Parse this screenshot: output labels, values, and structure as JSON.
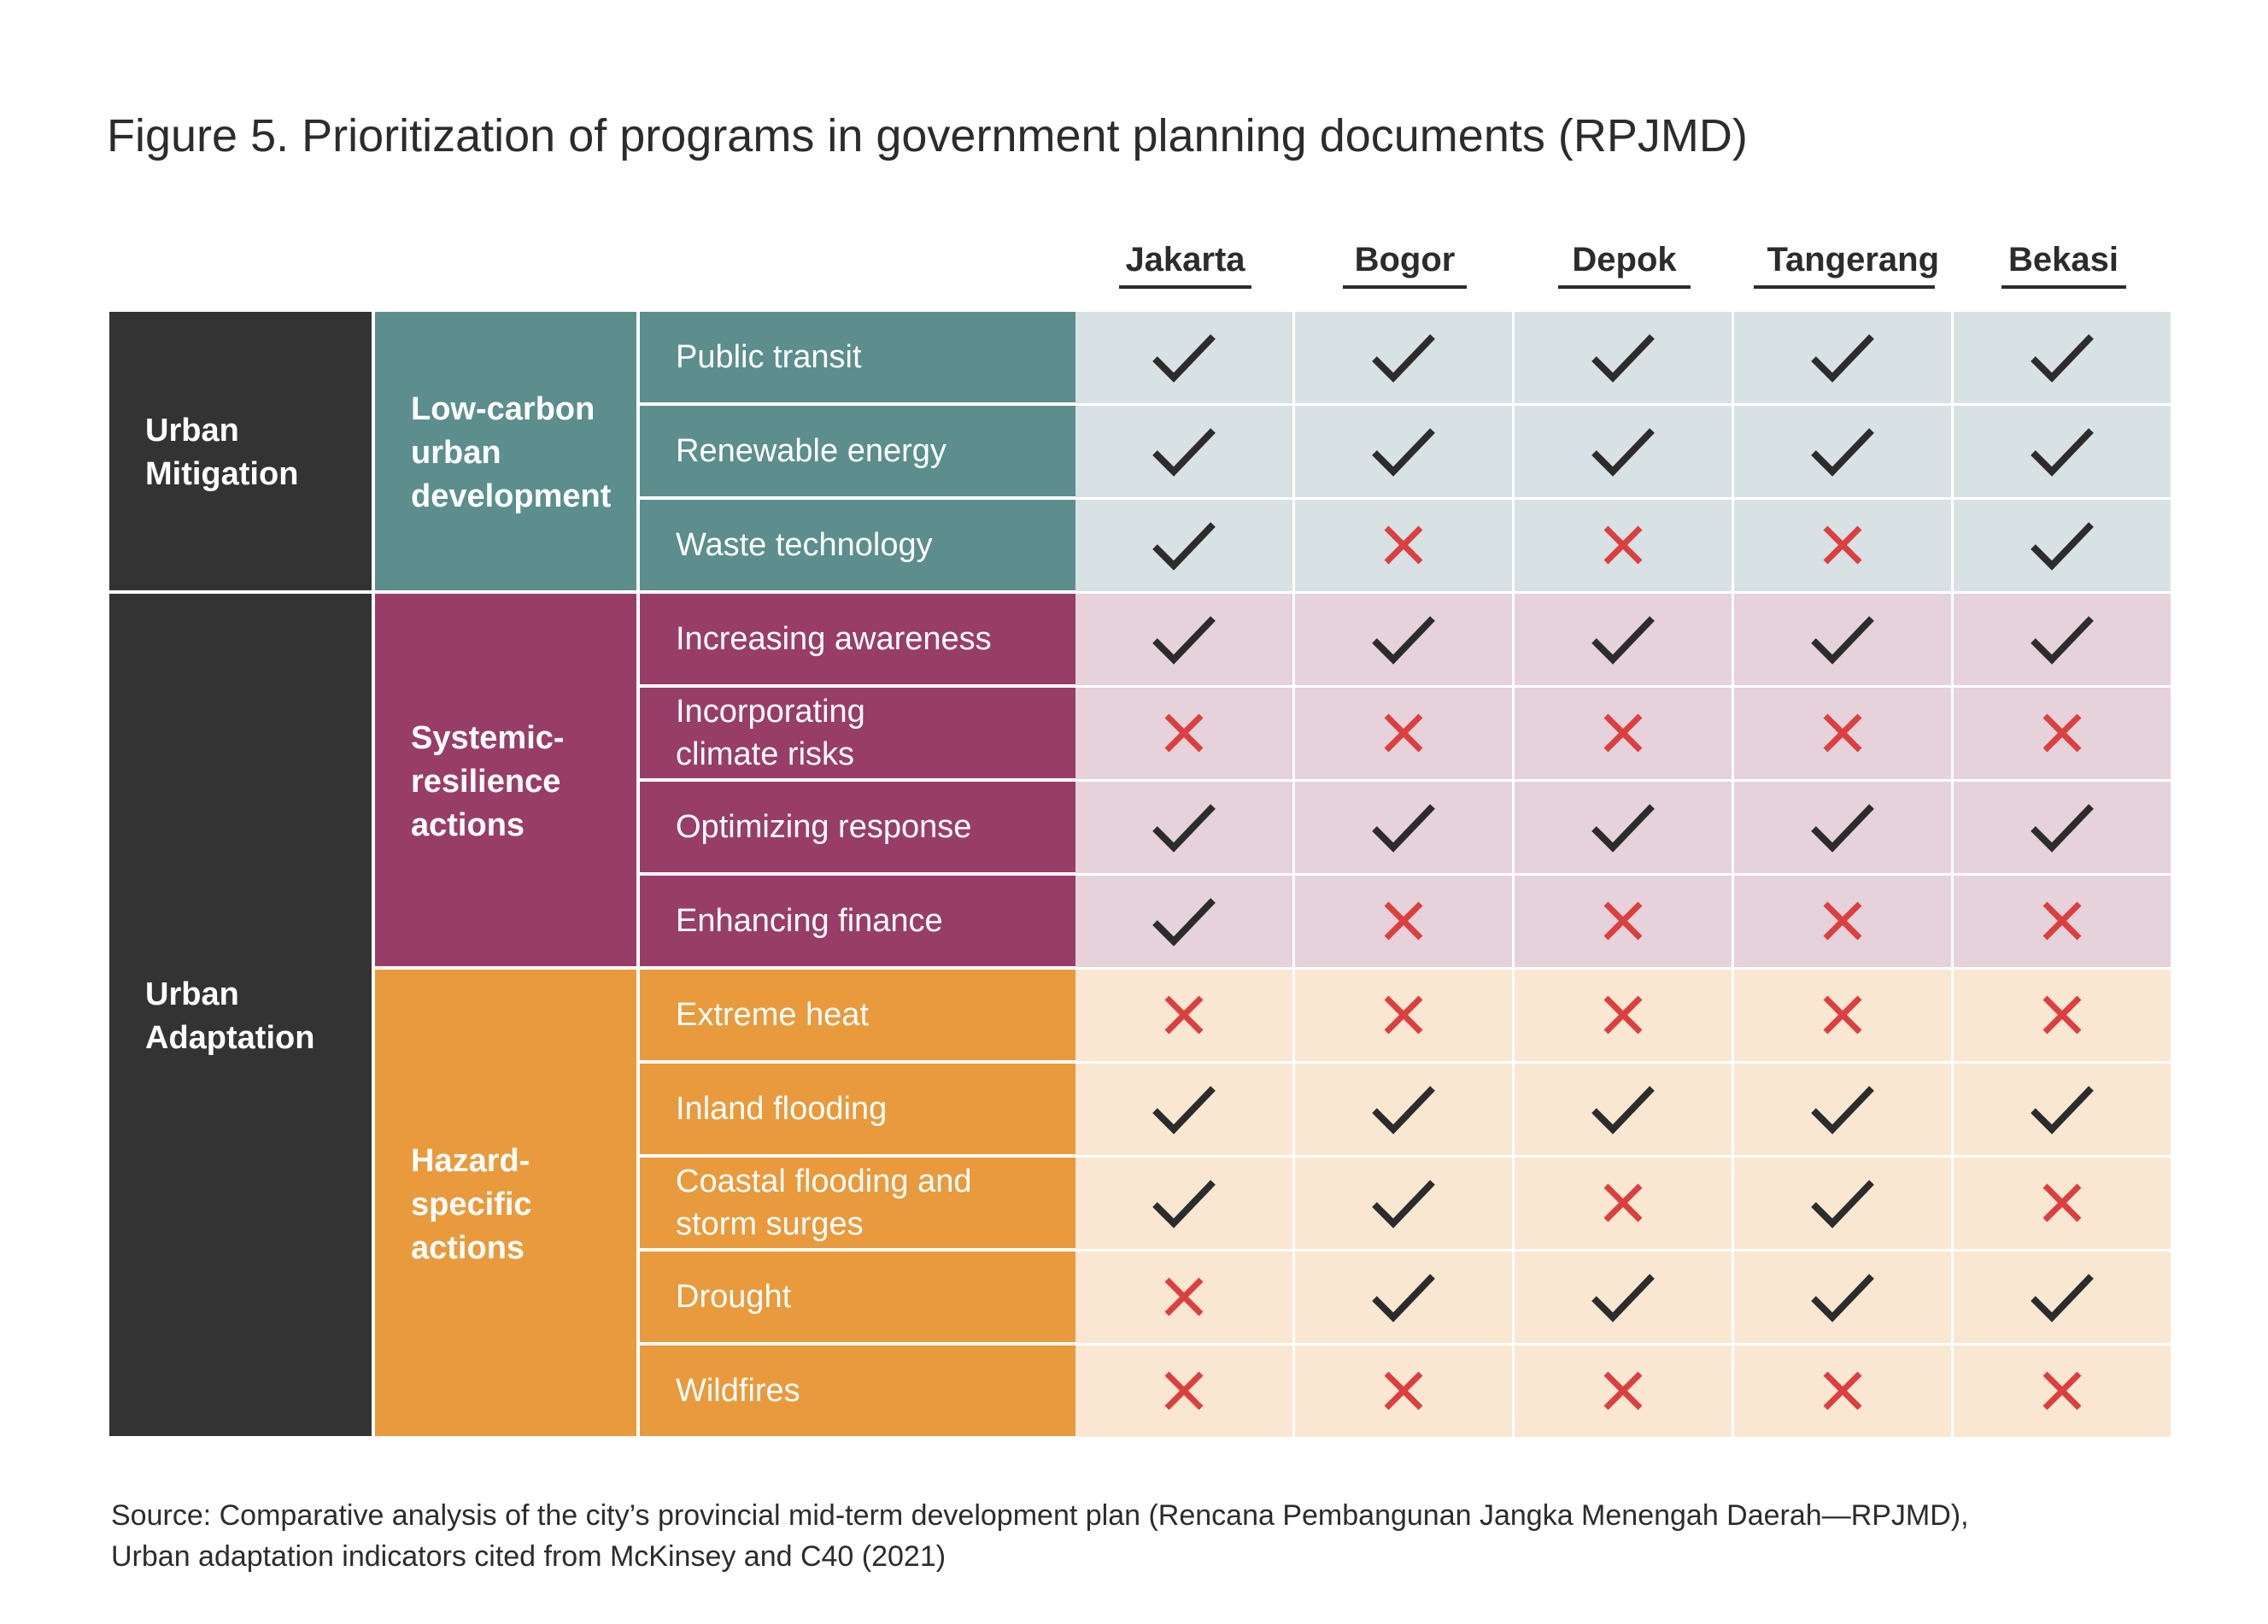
{
  "title": "Figure 5. Prioritization of programs in government planning documents (RPJMD)",
  "source": "Source: Comparative analysis of the city’s provincial mid-term development plan (Rencana Pembangunan Jangka Menengah Daerah—RPJMD),\nUrban adaptation indicators cited from McKinsey and C40 (2021)",
  "colors": {
    "dark": "#333333",
    "teal": "#5b8e8c",
    "purple": "#983d68",
    "orange": "#e89a3c",
    "teal_bg": "#d8e1e3",
    "purple_bg": "#e5d2da",
    "orange_bg": "#fae7d2",
    "check": "#2c2c2c",
    "cross": "#dc3f3f"
  },
  "chart_data": {
    "type": "table",
    "title": "Figure 5. Prioritization of programs in government planning documents (RPJMD)",
    "columns": [
      "Jakarta",
      "Bogor",
      "Depok",
      "Tangerang",
      "Bekasi"
    ],
    "categories": [
      {
        "label": "Urban\nMitigation",
        "groups": [
          "Low-carbon\nurban\ndevelopment"
        ]
      },
      {
        "label": "Urban\nAdaptation",
        "groups": [
          "Systemic-\nresilience\nactions",
          "Hazard-\nspecific\nactions"
        ]
      }
    ],
    "groups": [
      {
        "label": "Low-carbon\nurban\ndevelopment",
        "color": "teal"
      },
      {
        "label": "Systemic-\nresilience\nactions",
        "color": "purple"
      },
      {
        "label": "Hazard-\nspecific\nactions",
        "color": "orange"
      }
    ],
    "rows": [
      {
        "label": "Public transit",
        "group": 0,
        "values": [
          true,
          true,
          true,
          true,
          true
        ]
      },
      {
        "label": "Renewable energy",
        "group": 0,
        "values": [
          true,
          true,
          true,
          true,
          true
        ]
      },
      {
        "label": "Waste technology",
        "group": 0,
        "values": [
          true,
          false,
          false,
          false,
          true
        ]
      },
      {
        "label": "Increasing awareness",
        "group": 1,
        "values": [
          true,
          true,
          true,
          true,
          true
        ]
      },
      {
        "label": "Incorporating\nclimate risks",
        "group": 1,
        "values": [
          false,
          false,
          false,
          false,
          false
        ]
      },
      {
        "label": "Optimizing response",
        "group": 1,
        "values": [
          true,
          true,
          true,
          true,
          true
        ]
      },
      {
        "label": "Enhancing finance",
        "group": 1,
        "values": [
          true,
          false,
          false,
          false,
          false
        ]
      },
      {
        "label": "Extreme heat",
        "group": 2,
        "values": [
          false,
          false,
          false,
          false,
          false
        ]
      },
      {
        "label": "Inland flooding",
        "group": 2,
        "values": [
          true,
          true,
          true,
          true,
          true
        ]
      },
      {
        "label": "Coastal flooding and\nstorm surges",
        "group": 2,
        "values": [
          true,
          true,
          false,
          true,
          false
        ]
      },
      {
        "label": "Drought",
        "group": 2,
        "values": [
          false,
          true,
          true,
          true,
          true
        ]
      },
      {
        "label": "Wildfires",
        "group": 2,
        "values": [
          false,
          false,
          false,
          false,
          false
        ]
      }
    ]
  }
}
